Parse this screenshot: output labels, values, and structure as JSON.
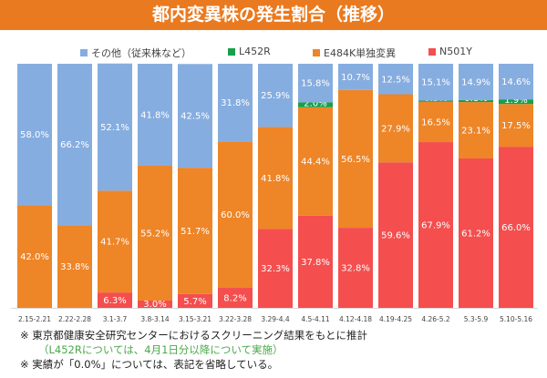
{
  "title": "都内変異株の発生割合（推移）",
  "chart_data": {
    "type": "bar",
    "stacked": true,
    "categories": [
      "2.15-2.21",
      "2.22-2.28",
      "3.1-3.7",
      "3.8-3.14",
      "3.15-3.21",
      "3.22-3.28",
      "3.29-4.4",
      "4.5-4.11",
      "4.12-4.18",
      "4.19-4.25",
      "4.26-5.2",
      "5.3-5.9",
      "5.10-5.16"
    ],
    "ylim": [
      0,
      100
    ],
    "legend_position": "top",
    "grid": false,
    "series": [
      {
        "name": "N501Y",
        "color": "#f44e4e",
        "values": [
          0,
          0,
          6.3,
          3.0,
          5.7,
          8.2,
          32.3,
          37.8,
          32.8,
          59.6,
          67.9,
          61.2,
          66.0
        ]
      },
      {
        "name": "E484K単独変異",
        "color": "#ee8527",
        "values": [
          42.0,
          33.8,
          41.7,
          55.2,
          51.7,
          60.0,
          41.8,
          44.4,
          56.5,
          27.9,
          16.5,
          23.1,
          17.5
        ]
      },
      {
        "name": "L452R",
        "color": "#16a04a",
        "values": [
          0,
          0,
          0,
          0,
          0,
          0,
          0,
          2.0,
          0,
          0,
          0.5,
          0.8,
          1.9
        ]
      },
      {
        "name": "その他（従来株など）",
        "color": "#86ade0",
        "values": [
          58.0,
          66.2,
          52.1,
          41.8,
          42.5,
          31.8,
          25.9,
          15.8,
          10.7,
          12.5,
          15.1,
          14.9,
          14.6
        ]
      }
    ],
    "value_format": "%"
  },
  "legend": [
    {
      "label": "その他（従来株など）",
      "color": "#86ade0"
    },
    {
      "label": "L452R",
      "color": "#16a04a"
    },
    {
      "label": "E484K単独変異",
      "color": "#ee8527"
    },
    {
      "label": "N501Y",
      "color": "#f44e4e"
    }
  ],
  "notes": {
    "line1": "※ 東京都健康安全研究センターにおけるスクリーニング結果をもとに推計",
    "line2": "（L452Rについては、4月1日分以降について実施）",
    "line3": "※ 実績が「0.0%」については、表記を省略している。"
  }
}
